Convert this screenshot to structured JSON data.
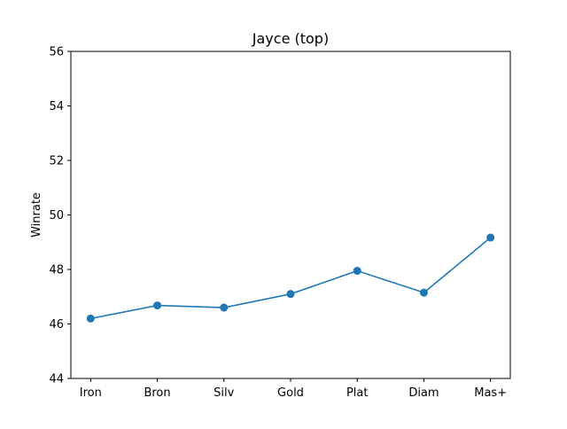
{
  "chart_data": {
    "type": "line",
    "title": "Jayce (top)",
    "xlabel": "",
    "ylabel": "Winrate",
    "categories": [
      "Iron",
      "Bron",
      "Silv",
      "Gold",
      "Plat",
      "Diam",
      "Mas+"
    ],
    "series": [
      {
        "name": "Winrate",
        "values": [
          46.2,
          46.68,
          46.6,
          47.1,
          47.95,
          47.15,
          49.17
        ],
        "color": "#1f77b4",
        "marker": "circle"
      }
    ],
    "ylim": [
      44,
      56
    ],
    "yticks": [
      "44",
      "46",
      "48",
      "50",
      "52",
      "54",
      "56"
    ],
    "grid": false,
    "legend": "none"
  }
}
